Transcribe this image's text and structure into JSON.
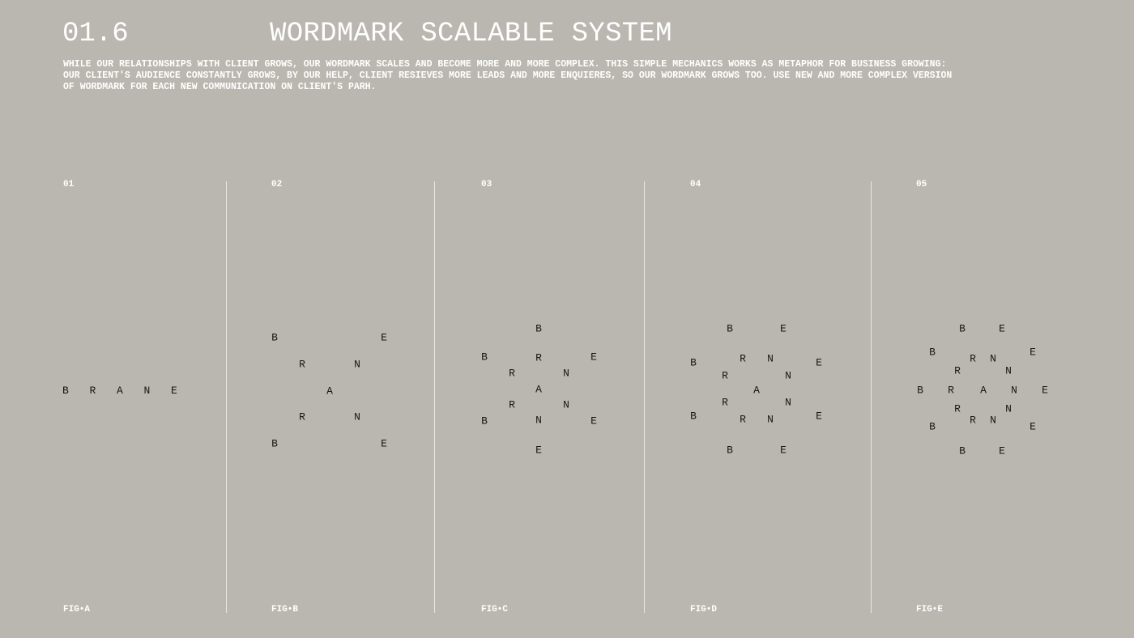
{
  "header": {
    "section_number": "01.6",
    "title": "WORDMARK SCALABLE SYSTEM",
    "description": "WHILE OUR RELATIONSHIPS WITH CLIENT GROWS, OUR WORDMARK SCALES AND BECOME MORE AND MORE COMPLEX. THIS SIMPLE MECHANICS WORKS AS METAPHOR FOR BUSINESS GROWING:\nOUR CLIENT'S AUDIENCE CONSTANTLY GROWS, BY OUR HELP, CLIENT RESIEVES MORE LEADS AND MORE ENQUIERES, SO OUR WORDMARK GROWS TOO. USE NEW AND MORE COMPLEX VERSION\nOF WORDMARK FOR EACH NEW COMMUNICATION ON CLIENT'S PARH."
  },
  "figures": [
    {
      "number": "01",
      "caption": "FIG•A",
      "letters": "BRANE"
    },
    {
      "number": "02",
      "caption": "FIG•B",
      "letters": "BERNARNBE"
    },
    {
      "number": "03",
      "caption": "FIG•C",
      "letters": "BBRERNARNBNEE"
    },
    {
      "number": "04",
      "caption": "FIG•D",
      "letters": "BEBRNERNARNBRNEBE"
    },
    {
      "number": "05",
      "caption": "FIG•E",
      "letters": "BEBRNERNBRANERNBRNEBE"
    }
  ],
  "colors": {
    "background": "#bab7b0",
    "heading": "#ffffff",
    "letters": "#161616",
    "divider": "#e9e7e2"
  }
}
